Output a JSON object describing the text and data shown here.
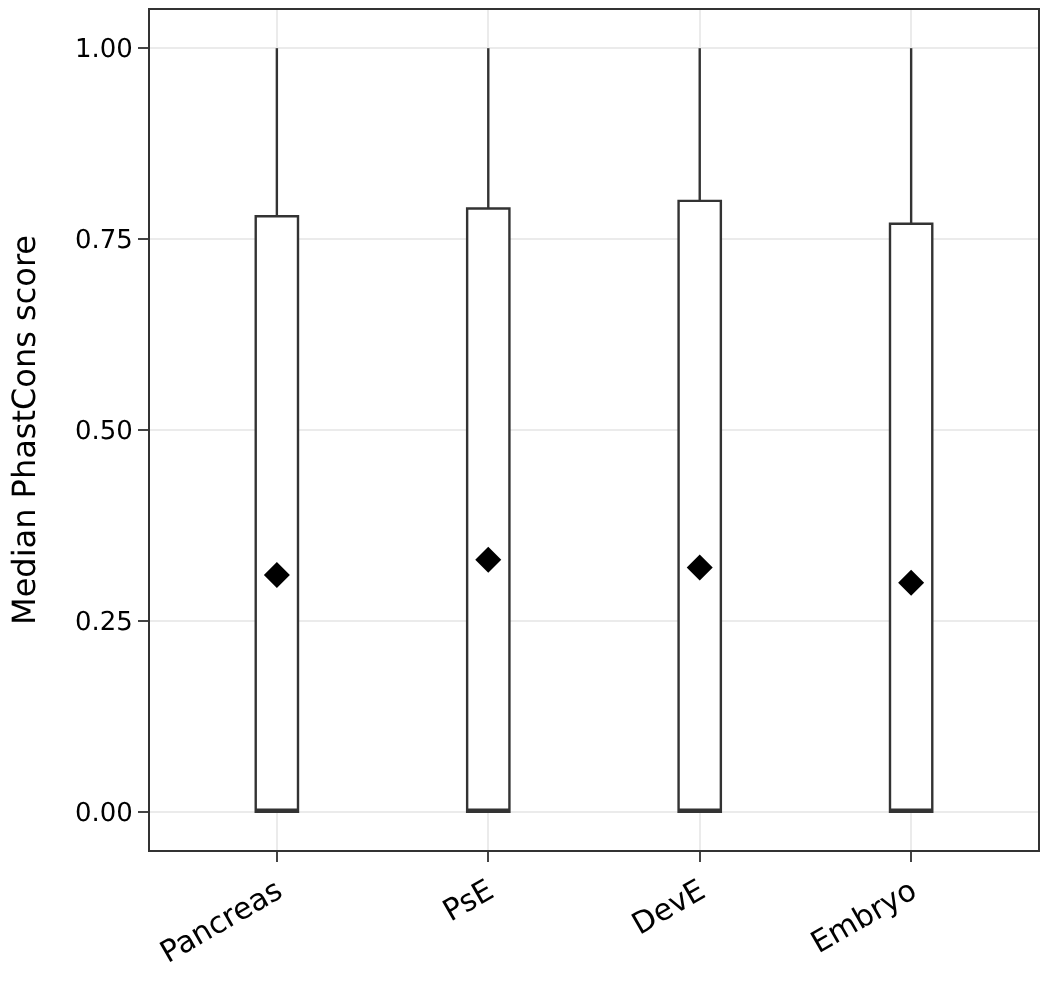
{
  "chart_data": {
    "type": "box",
    "ylabel": "Median PhastCons score",
    "categories": [
      "Pancreas",
      "PsE",
      "DevE",
      "Embryo"
    ],
    "boxes": [
      {
        "low": 0,
        "q1": 0,
        "median": 0,
        "q3": 0.78,
        "high": 1,
        "mean": 0.31
      },
      {
        "low": 0,
        "q1": 0,
        "median": 0,
        "q3": 0.79,
        "high": 1,
        "mean": 0.33
      },
      {
        "low": 0,
        "q1": 0,
        "median": 0,
        "q3": 0.8,
        "high": 1,
        "mean": 0.32
      },
      {
        "low": 0,
        "q1": 0,
        "median": 0,
        "q3": 0.77,
        "high": 1,
        "mean": 0.3
      }
    ],
    "color": "#333333",
    "marker": "diamond",
    "ylim": [
      -0.05,
      1.05
    ],
    "yticks": [
      {
        "value": 0,
        "label": "0.00"
      },
      {
        "value": 0.25,
        "label": "0.25"
      },
      {
        "value": 0.5,
        "label": "0.50"
      },
      {
        "value": 0.75,
        "label": "0.75"
      },
      {
        "value": 1,
        "label": "1.00"
      }
    ],
    "grid": true
  }
}
